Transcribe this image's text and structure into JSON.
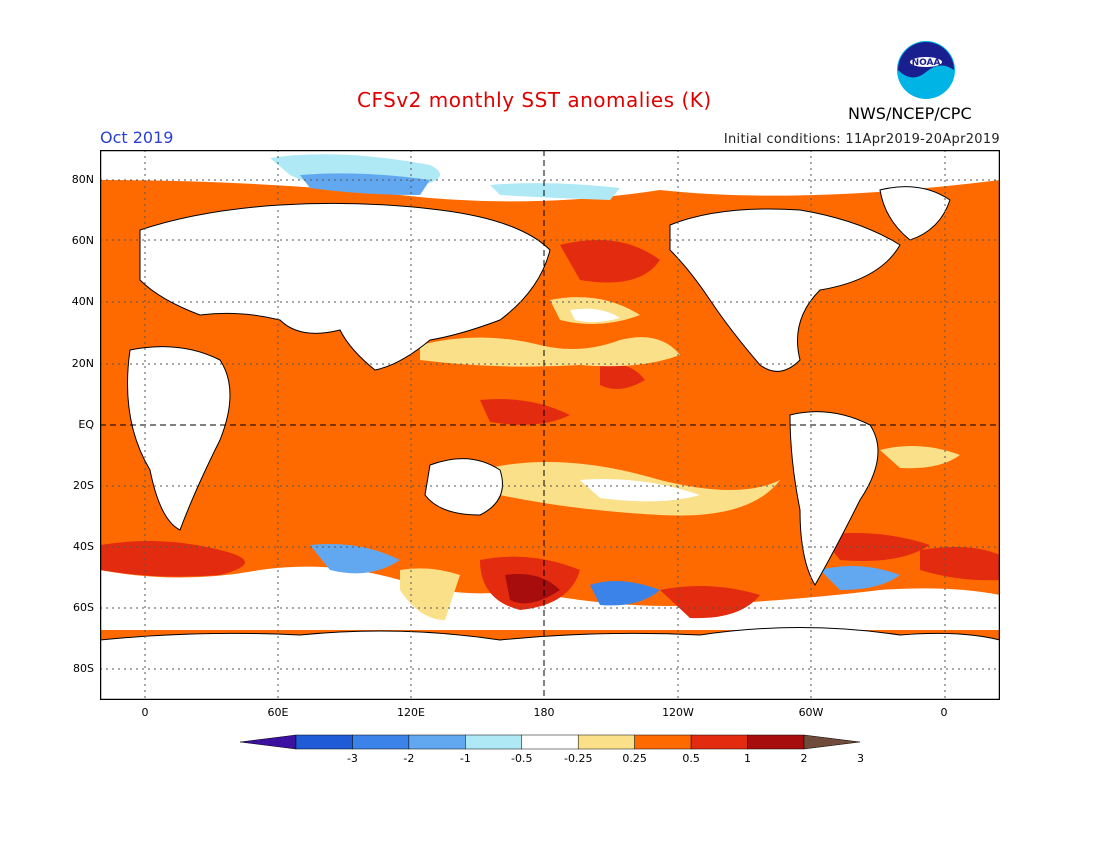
{
  "header": {
    "title": "CFSv2 monthly SST anomalies (K)",
    "agency": "NWS/NCEP/CPC",
    "logo_text": "NOAA",
    "month": "Oct 2019",
    "initial_conditions": "Initial conditions: 11Apr2019-20Apr2019"
  },
  "axes": {
    "lat_labels": [
      "80N",
      "60N",
      "40N",
      "20N",
      "EQ",
      "20S",
      "40S",
      "60S",
      "80S"
    ],
    "lon_labels": [
      "0",
      "60E",
      "120E",
      "180",
      "120W",
      "60W",
      "0"
    ]
  },
  "colorbar": {
    "labels": [
      "-3",
      "-2",
      "-1",
      "-0.5",
      "-0.25",
      "0.25",
      "0.5",
      "1",
      "2",
      "3"
    ],
    "colors": [
      "#3c10a0",
      "#1f5bd6",
      "#3b83e8",
      "#62a8f0",
      "#aee9f5",
      "#ffffff",
      "#fbe08a",
      "#ff6a00",
      "#e32b10",
      "#a80d0d",
      "#704a3a"
    ]
  }
}
